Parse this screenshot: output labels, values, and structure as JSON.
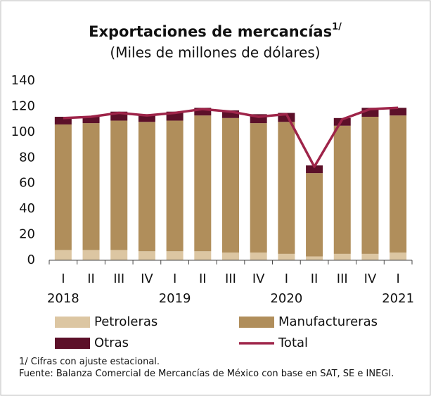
{
  "chart_data": {
    "type": "bar",
    "stacked": true,
    "title": "Exportaciones de mercancías",
    "title_superscript": "1/",
    "subtitle": "(Miles de millones de dólares)",
    "categories": [
      "I",
      "II",
      "III",
      "IV",
      "I",
      "II",
      "III",
      "IV",
      "I",
      "II",
      "III",
      "IV",
      "I"
    ],
    "years": [
      "2018",
      null,
      null,
      null,
      "2019",
      null,
      null,
      null,
      "2020",
      null,
      null,
      null,
      "2021"
    ],
    "series": [
      {
        "name": "Petroleras",
        "type": "bar",
        "color": "#dcc6a2",
        "values": [
          8,
          8,
          8,
          7,
          7,
          7,
          6,
          6,
          5,
          3,
          5,
          5,
          6
        ]
      },
      {
        "name": "Manufactureras",
        "type": "bar",
        "color": "#b08e5b",
        "values": [
          98,
          99,
          101,
          101,
          102,
          106,
          105,
          101,
          103,
          65,
          100,
          107,
          107
        ]
      },
      {
        "name": "Otras",
        "type": "bar",
        "color": "#5c1029",
        "values": [
          6,
          5,
          7,
          6,
          7,
          6,
          6,
          7,
          7,
          6,
          6,
          7,
          6
        ]
      },
      {
        "name": "Total",
        "type": "line",
        "color": "#9e2449",
        "values": [
          111,
          112,
          115,
          113,
          115,
          118,
          116,
          112,
          114,
          73,
          110,
          118,
          119
        ]
      }
    ],
    "ylim": [
      0,
      140
    ],
    "yticks": [
      0,
      20,
      40,
      60,
      80,
      100,
      120,
      140
    ],
    "notes": [
      "1/ Cifras con ajuste estacional.",
      "Fuente: Balanza Comercial de Mercancías de México con base en SAT, SE e INEGI."
    ]
  }
}
